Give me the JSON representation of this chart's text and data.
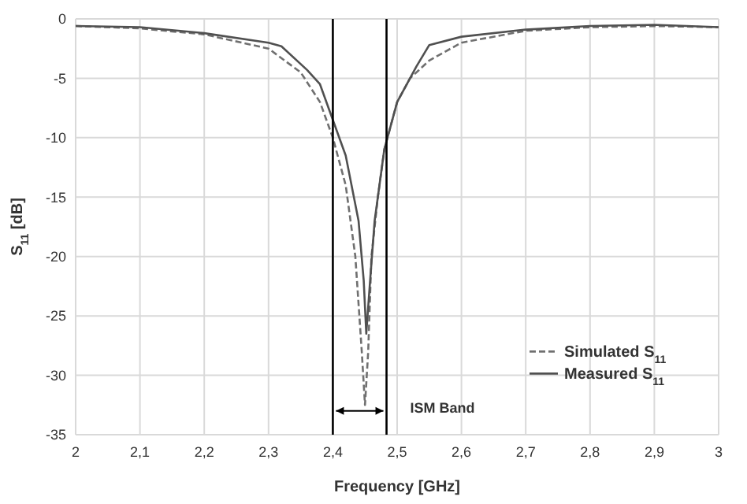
{
  "chart_data": {
    "type": "line",
    "xlabel": "Frequency [GHz]",
    "ylabel": "S$_{11}$ [dB]",
    "xlim": [
      2,
      3
    ],
    "xticks": [
      2,
      {
        "value": 2.1,
        "label": "2,1"
      },
      {
        "value": 2.2,
        "label": "2,2"
      },
      {
        "value": 2.3,
        "label": "2,3"
      },
      {
        "value": 2.4,
        "label": "2,4"
      },
      {
        "value": 2.5,
        "label": "2,5"
      },
      {
        "value": 2.6,
        "label": "2,6"
      },
      {
        "value": 2.7,
        "label": "2,7"
      },
      {
        "value": 2.8,
        "label": "2,8"
      },
      {
        "value": 2.9,
        "label": "2,9"
      },
      3
    ],
    "ylim": [
      -35,
      0
    ],
    "yticks": [
      -35,
      -30,
      -25,
      -20,
      -15,
      -10,
      -5,
      0
    ],
    "grid": true,
    "legend": "bottom right",
    "series": [
      {
        "name": "Simulated S$_{11}$",
        "color": "#707070",
        "line_style": "dashed",
        "x": [
          2,
          2.1,
          2.2,
          2.3,
          2.35,
          2.38,
          2.4,
          2.42,
          2.435,
          2.445,
          2.45,
          2.455,
          2.46,
          2.47,
          2.48,
          2.5,
          2.52,
          2.55,
          2.6,
          2.7,
          2.8,
          2.9,
          3
        ],
        "values": [
          -0.6,
          -0.8,
          -1.3,
          -2.5,
          -4.5,
          -7,
          -10,
          -14,
          -20,
          -28,
          -32.5,
          -28,
          -20,
          -15,
          -11,
          -7,
          -5,
          -3.5,
          -2,
          -1,
          -0.7,
          -0.6,
          -0.7
        ]
      },
      {
        "name": "Measured S$_{11}$",
        "color": "#505050",
        "line_style": "solid",
        "x": [
          2,
          2.1,
          2.2,
          2.3,
          2.32,
          2.36,
          2.38,
          2.4,
          2.42,
          2.44,
          2.448,
          2.452,
          2.458,
          2.465,
          2.48,
          2.5,
          2.53,
          2.55,
          2.6,
          2.7,
          2.8,
          2.9,
          3
        ],
        "values": [
          -0.6,
          -0.7,
          -1.2,
          -2,
          -2.3,
          -4.3,
          -5.5,
          -8.5,
          -11.5,
          -17,
          -22,
          -26.5,
          -22,
          -17,
          -11,
          -7,
          -4,
          -2.2,
          -1.5,
          -0.9,
          -0.6,
          -0.5,
          -0.7
        ]
      }
    ],
    "ref_lines": [
      {
        "axis": "x",
        "value": 2.4,
        "color": "#000000"
      },
      {
        "axis": "x",
        "value": 2.4835,
        "color": "#000000"
      }
    ],
    "annotations": [
      "ISM Band"
    ]
  }
}
